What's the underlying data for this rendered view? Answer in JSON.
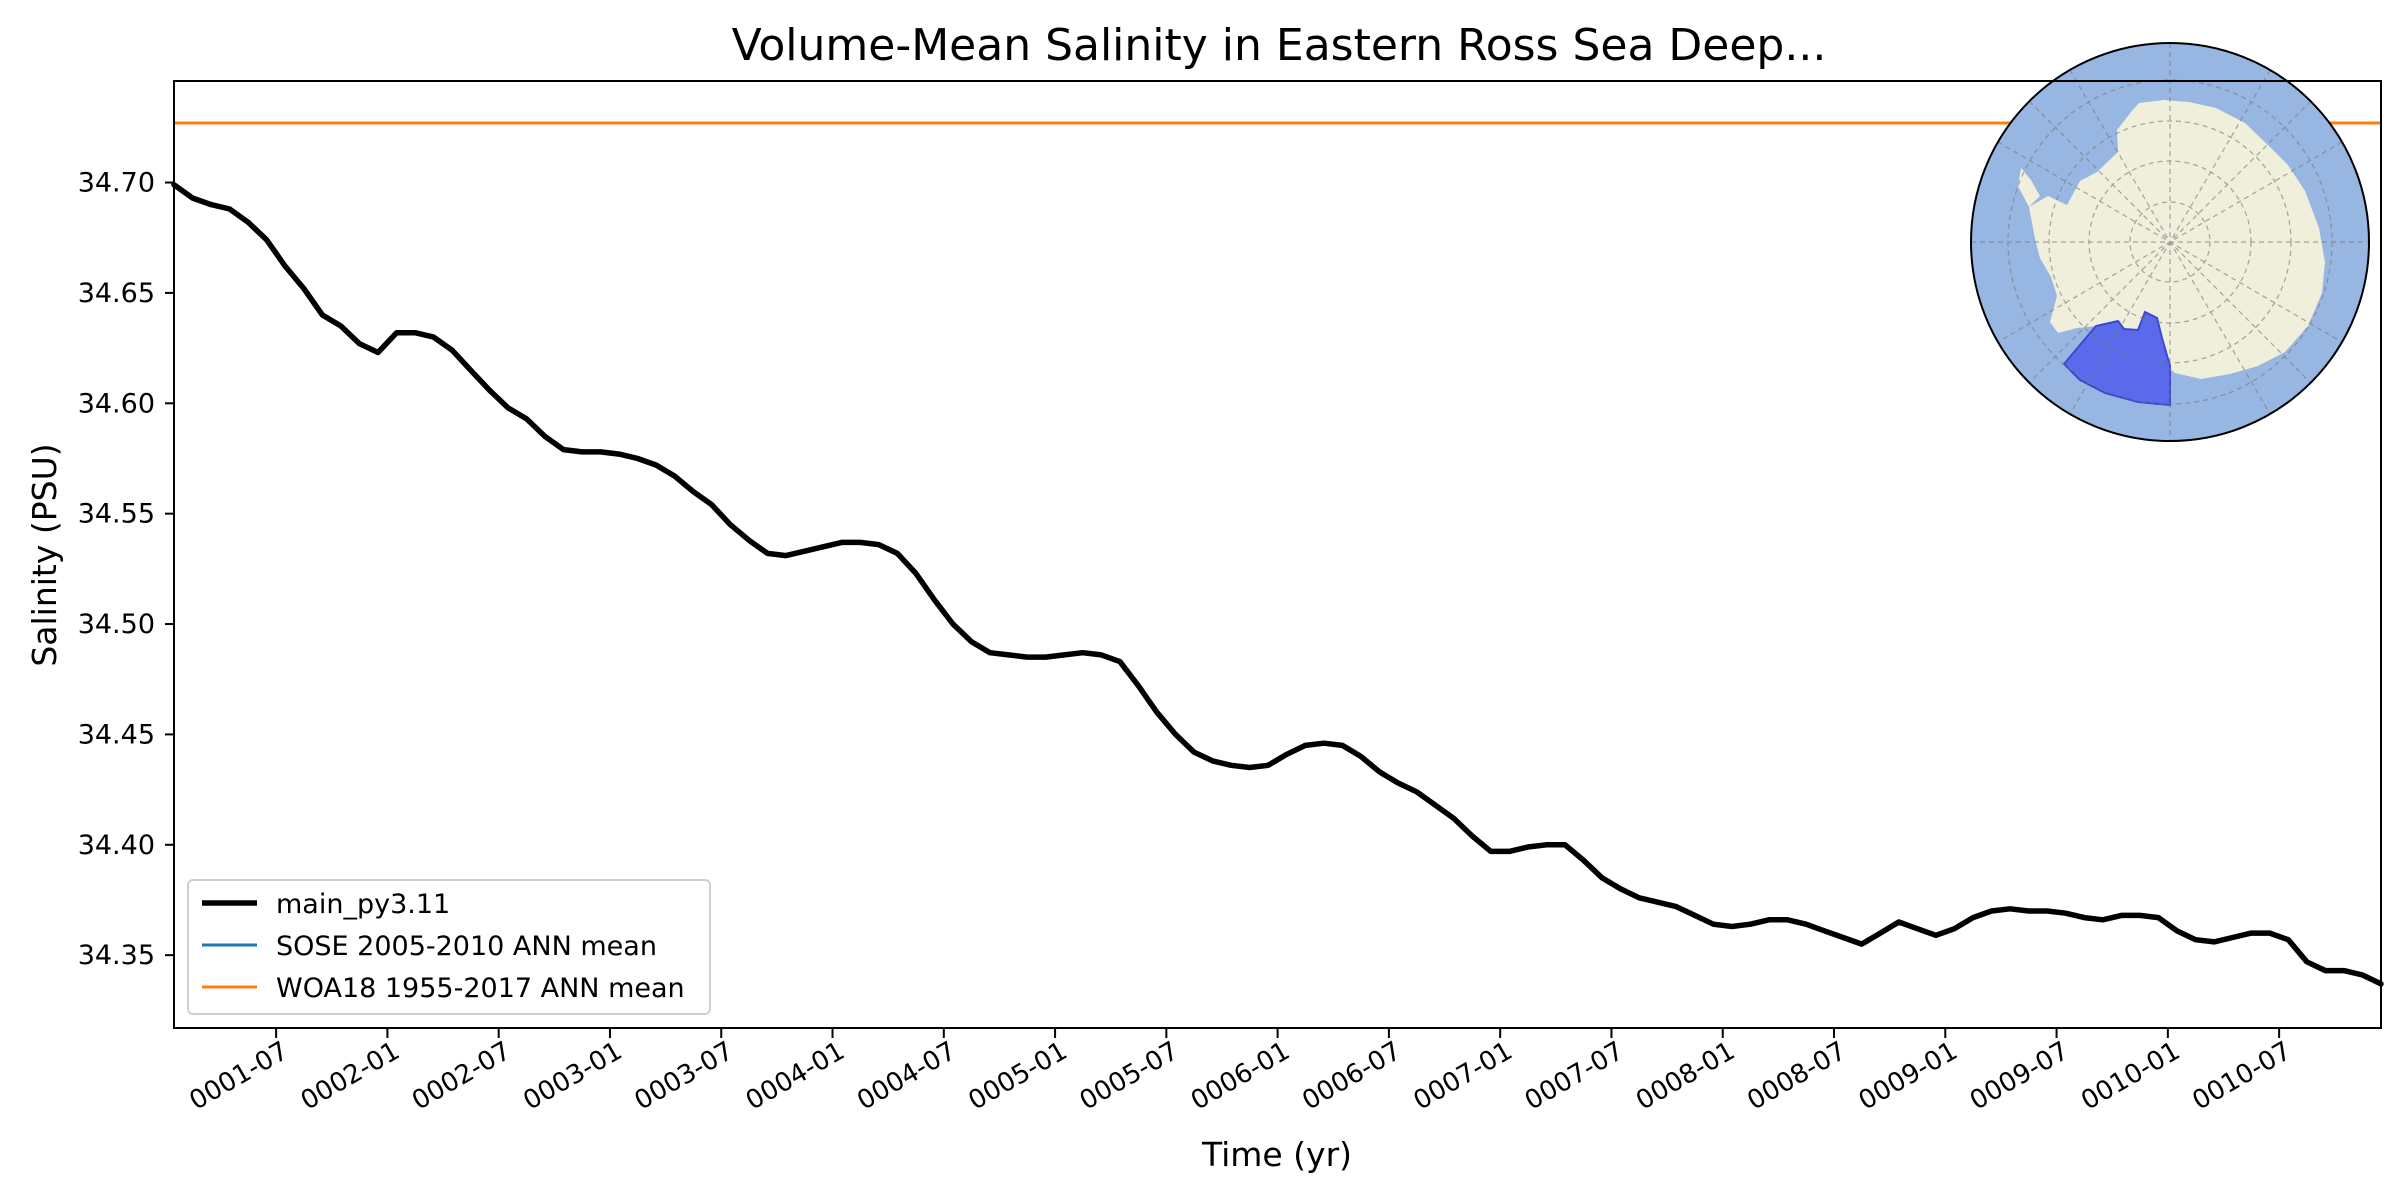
{
  "chart_data": {
    "type": "line",
    "title": "Volume-Mean Salinity in Eastern Ross Sea Deep...",
    "xlabel": "Time (yr)",
    "ylabel": "Salinity (PSU)",
    "xlim": [
      "0001-01-16",
      "0010-12-16"
    ],
    "ylim": [
      34.317,
      34.746
    ],
    "grid": false,
    "legend_position": "lower-left",
    "x_ticks": [
      "0001-07",
      "0002-01",
      "0002-07",
      "0003-01",
      "0003-07",
      "0004-01",
      "0004-07",
      "0005-01",
      "0005-07",
      "0006-01",
      "0006-07",
      "0007-01",
      "0007-07",
      "0008-01",
      "0008-07",
      "0009-01",
      "0009-07",
      "0010-01",
      "0010-07"
    ],
    "y_ticks": [
      "34.35",
      "34.40",
      "34.45",
      "34.50",
      "34.55",
      "34.60",
      "34.65",
      "34.70"
    ],
    "x_dates": [
      "0001-01",
      "0001-02",
      "0001-03",
      "0001-04",
      "0001-05",
      "0001-06",
      "0001-07",
      "0001-08",
      "0001-09",
      "0001-10",
      "0001-11",
      "0001-12",
      "0002-01",
      "0002-02",
      "0002-03",
      "0002-04",
      "0002-05",
      "0002-06",
      "0002-07",
      "0002-08",
      "0002-09",
      "0002-10",
      "0002-11",
      "0002-12",
      "0003-01",
      "0003-02",
      "0003-03",
      "0003-04",
      "0003-05",
      "0003-06",
      "0003-07",
      "0003-08",
      "0003-09",
      "0003-10",
      "0003-11",
      "0003-12",
      "0004-01",
      "0004-02",
      "0004-03",
      "0004-04",
      "0004-05",
      "0004-06",
      "0004-07",
      "0004-08",
      "0004-09",
      "0004-10",
      "0004-11",
      "0004-12",
      "0005-01",
      "0005-02",
      "0005-03",
      "0005-04",
      "0005-05",
      "0005-06",
      "0005-07",
      "0005-08",
      "0005-09",
      "0005-10",
      "0005-11",
      "0005-12",
      "0006-01",
      "0006-02",
      "0006-03",
      "0006-04",
      "0006-05",
      "0006-06",
      "0006-07",
      "0006-08",
      "0006-09",
      "0006-10",
      "0006-11",
      "0006-12",
      "0007-01",
      "0007-02",
      "0007-03",
      "0007-04",
      "0007-05",
      "0007-06",
      "0007-07",
      "0007-08",
      "0007-09",
      "0007-10",
      "0007-11",
      "0007-12",
      "0008-01",
      "0008-02",
      "0008-03",
      "0008-04",
      "0008-05",
      "0008-06",
      "0008-07",
      "0008-08",
      "0008-09",
      "0008-10",
      "0008-11",
      "0008-12",
      "0009-01",
      "0009-02",
      "0009-03",
      "0009-04",
      "0009-05",
      "0009-06",
      "0009-07",
      "0009-08",
      "0009-09",
      "0009-10",
      "0009-11",
      "0009-12",
      "0010-01",
      "0010-02",
      "0010-03",
      "0010-04",
      "0010-05",
      "0010-06",
      "0010-07",
      "0010-08",
      "0010-09",
      "0010-10",
      "0010-11",
      "0010-12"
    ],
    "series": [
      {
        "name": "main_py3.11",
        "color": "#000000",
        "values": [
          34.699,
          34.693,
          34.69,
          34.688,
          34.682,
          34.674,
          34.662,
          34.652,
          34.64,
          34.635,
          34.627,
          34.623,
          34.632,
          34.632,
          34.63,
          34.624,
          34.615,
          34.606,
          34.598,
          34.593,
          34.585,
          34.579,
          34.578,
          34.578,
          34.577,
          34.575,
          34.572,
          34.567,
          34.56,
          34.554,
          34.545,
          34.538,
          34.532,
          34.531,
          34.533,
          34.535,
          34.537,
          34.537,
          34.536,
          34.532,
          34.523,
          34.511,
          34.5,
          34.492,
          34.487,
          34.486,
          34.485,
          34.485,
          34.486,
          34.487,
          34.486,
          34.483,
          34.472,
          34.46,
          34.45,
          34.442,
          34.438,
          34.436,
          34.435,
          34.436,
          34.441,
          34.445,
          34.446,
          34.445,
          34.44,
          34.433,
          34.428,
          34.424,
          34.418,
          34.412,
          34.404,
          34.397,
          34.397,
          34.399,
          34.4,
          34.4,
          34.393,
          34.385,
          34.38,
          34.376,
          34.374,
          34.372,
          34.368,
          34.364,
          34.363,
          34.364,
          34.366,
          34.366,
          34.364,
          34.361,
          34.358,
          34.355,
          34.36,
          34.365,
          34.362,
          34.359,
          34.362,
          34.367,
          34.37,
          34.371,
          34.37,
          34.37,
          34.369,
          34.367,
          34.366,
          34.368,
          34.368,
          34.367,
          34.361,
          34.357,
          34.356,
          34.358,
          34.36,
          34.36,
          34.357,
          34.347,
          34.343,
          34.343,
          34.341,
          34.337
        ]
      },
      {
        "name": "SOSE 2005-2010 ANN mean",
        "color": "#1f77b4",
        "values": []
      },
      {
        "name": "WOA18 1955-2017 ANN mean",
        "color": "#ff7f0e",
        "values": [
          34.727
        ]
      }
    ],
    "inset_map": {
      "ocean_color": "#97b6e1",
      "land_color": "#efefdb",
      "region_color": "#5b6aea"
    }
  }
}
